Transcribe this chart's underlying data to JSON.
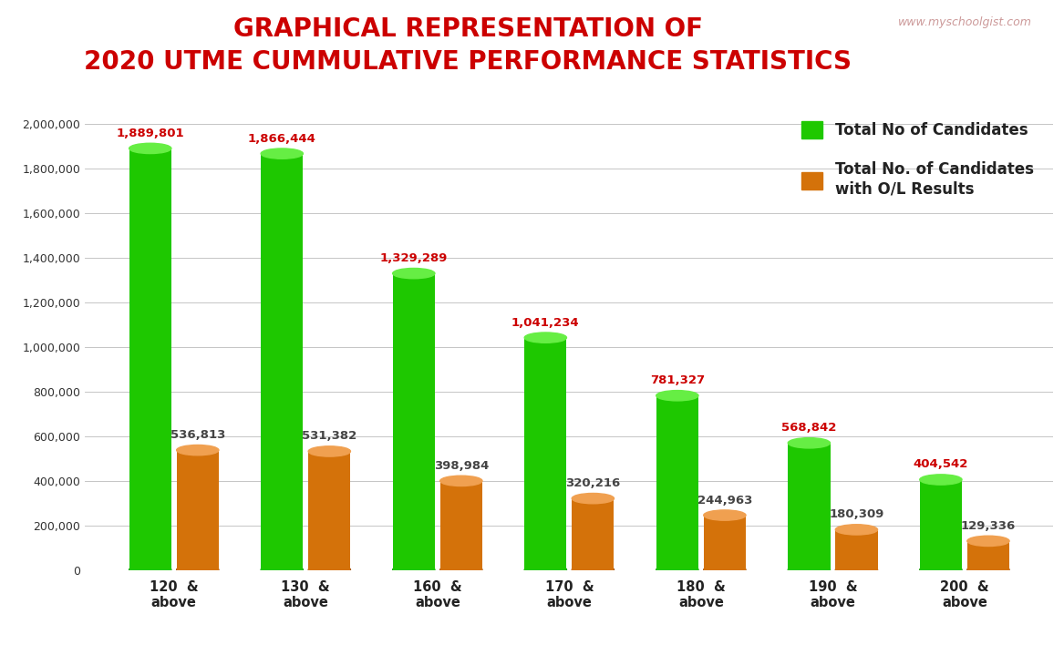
{
  "title_line1": "GRAPHICAL REPRESENTATION OF",
  "title_line2": "2020 UTME CUMMULATIVE PERFORMANCE STATISTICS",
  "watermark": "www.myschoolgist.com",
  "categories": [
    "120  &\nabove",
    "130  &\nabove",
    "160  &\nabove",
    "170  &\nabove",
    "180  &\nabove",
    "190  &\nabove",
    "200  &\nabove"
  ],
  "green_values": [
    1889801,
    1866444,
    1329289,
    1041234,
    781327,
    568842,
    404542
  ],
  "orange_values": [
    536813,
    531382,
    398984,
    320216,
    244963,
    180309,
    129336
  ],
  "green_color": "#1EC800",
  "orange_color": "#D4720A",
  "green_top_color": "#66EE44",
  "orange_top_color": "#F0A050",
  "green_dark_color": "#0F9900",
  "orange_dark_color": "#A05008",
  "green_label": "Total No of Candidates",
  "orange_label": "Total No. of Candidates\nwith O/L Results",
  "title_color": "#CC0000",
  "annotation_green_color": "#CC0000",
  "annotation_orange_color": "#444444",
  "watermark_color": "#CC9999",
  "background_color": "#FFFFFF",
  "ylim": [
    0,
    2100000
  ],
  "yticks": [
    0,
    200000,
    400000,
    600000,
    800000,
    1000000,
    1200000,
    1400000,
    1600000,
    1800000,
    2000000
  ]
}
